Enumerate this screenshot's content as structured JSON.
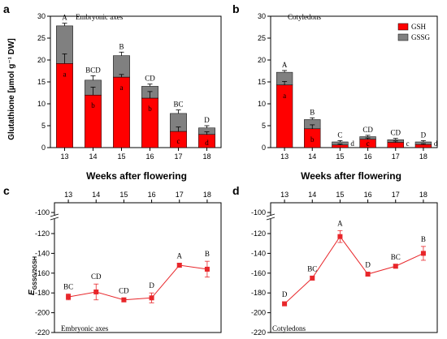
{
  "panel_labels": {
    "a": "a",
    "b": "b",
    "c": "c",
    "d": "d"
  },
  "colors": {
    "gsh": "#ff0000",
    "gssg": "#808080",
    "line": "#e8262a",
    "errbar": "#000000"
  },
  "chart_data": [
    {
      "type": "bar",
      "id": "a",
      "stacked": true,
      "title": "Embryonic axes",
      "xlabel": "Weeks after flowering",
      "ylabel": "Glutathione [µmol g⁻¹ DW]",
      "categories": [
        "13",
        "14",
        "15",
        "16",
        "17",
        "18"
      ],
      "ylim": [
        0,
        30
      ],
      "yticks": [
        "0",
        "5",
        "10",
        "15",
        "20",
        "25",
        "30"
      ],
      "series": [
        {
          "name": "GSH",
          "values": [
            19.2,
            12.0,
            16.1,
            11.3,
            3.7,
            3.0
          ],
          "err": [
            2.2,
            1.8,
            0.6,
            1.5,
            1.0,
            0.6
          ],
          "letters": [
            "a",
            "b",
            "a",
            "b",
            "c",
            "d"
          ]
        },
        {
          "name": "GSSG",
          "values": [
            8.6,
            3.4,
            4.9,
            2.7,
            4.1,
            1.5
          ],
          "err": [
            0.6,
            1.0,
            0.8,
            0.5,
            0.8,
            0.5
          ],
          "letters": [
            "A",
            "BCD",
            "B",
            "CD",
            "BC",
            "D"
          ]
        }
      ]
    },
    {
      "type": "bar",
      "id": "b",
      "stacked": true,
      "title": "Cotyledons",
      "xlabel": "Weeks after flowering",
      "ylabel": "",
      "categories": [
        "13",
        "14",
        "15",
        "16",
        "17",
        "18"
      ],
      "ylim": [
        0,
        30
      ],
      "yticks": [
        "0",
        "5",
        "10",
        "15",
        "20",
        "25",
        "30"
      ],
      "legend": [
        "GSH",
        "GSSG"
      ],
      "series": [
        {
          "name": "GSH",
          "values": [
            14.3,
            4.3,
            0.6,
            1.9,
            1.2,
            0.7
          ],
          "err": [
            0.8,
            0.9,
            0.2,
            0.3,
            0.3,
            0.2
          ],
          "letters": [
            "a",
            "b",
            "d",
            "c",
            "c",
            "d"
          ]
        },
        {
          "name": "GSSG",
          "values": [
            2.9,
            2.1,
            0.7,
            0.6,
            0.6,
            0.6
          ],
          "err": [
            0.4,
            0.4,
            0.3,
            0.3,
            0.3,
            0.3
          ],
          "letters": [
            "A",
            "B",
            "C",
            "CD",
            "CD",
            "D"
          ]
        }
      ]
    },
    {
      "type": "line",
      "id": "c",
      "title": "Embryonic axes",
      "xlabel": "",
      "ylabel_main": "E",
      "ylabel_sub": "GSSG/2GSH",
      "x": [
        "13",
        "14",
        "15",
        "16",
        "17",
        "18"
      ],
      "ylim": [
        -220,
        -100
      ],
      "yticks": [
        "-220",
        "-200",
        "-180",
        "-160",
        "-140",
        "-120",
        "-100"
      ],
      "series": [
        {
          "name": "",
          "values": [
            -184,
            -179,
            -187,
            -185,
            -152,
            -156
          ],
          "err": [
            3,
            8,
            2,
            5,
            2,
            8
          ],
          "letters": [
            "BC",
            "CD",
            "CD",
            "D",
            "A",
            "B"
          ]
        }
      ]
    },
    {
      "type": "line",
      "id": "d",
      "title": "Cotyledons",
      "xlabel": "",
      "x": [
        "13",
        "14",
        "15",
        "16",
        "17",
        "18"
      ],
      "ylim": [
        -220,
        -100
      ],
      "yticks": [
        "-220",
        "-200",
        "-180",
        "-160",
        "-140",
        "-120",
        "-100"
      ],
      "series": [
        {
          "name": "",
          "values": [
            -191,
            -165,
            -123,
            -161,
            -153,
            -140
          ],
          "err": [
            2,
            2,
            6,
            2,
            2,
            7
          ],
          "letters": [
            "D",
            "BC",
            "A",
            "D",
            "BC",
            "B"
          ]
        }
      ]
    }
  ]
}
